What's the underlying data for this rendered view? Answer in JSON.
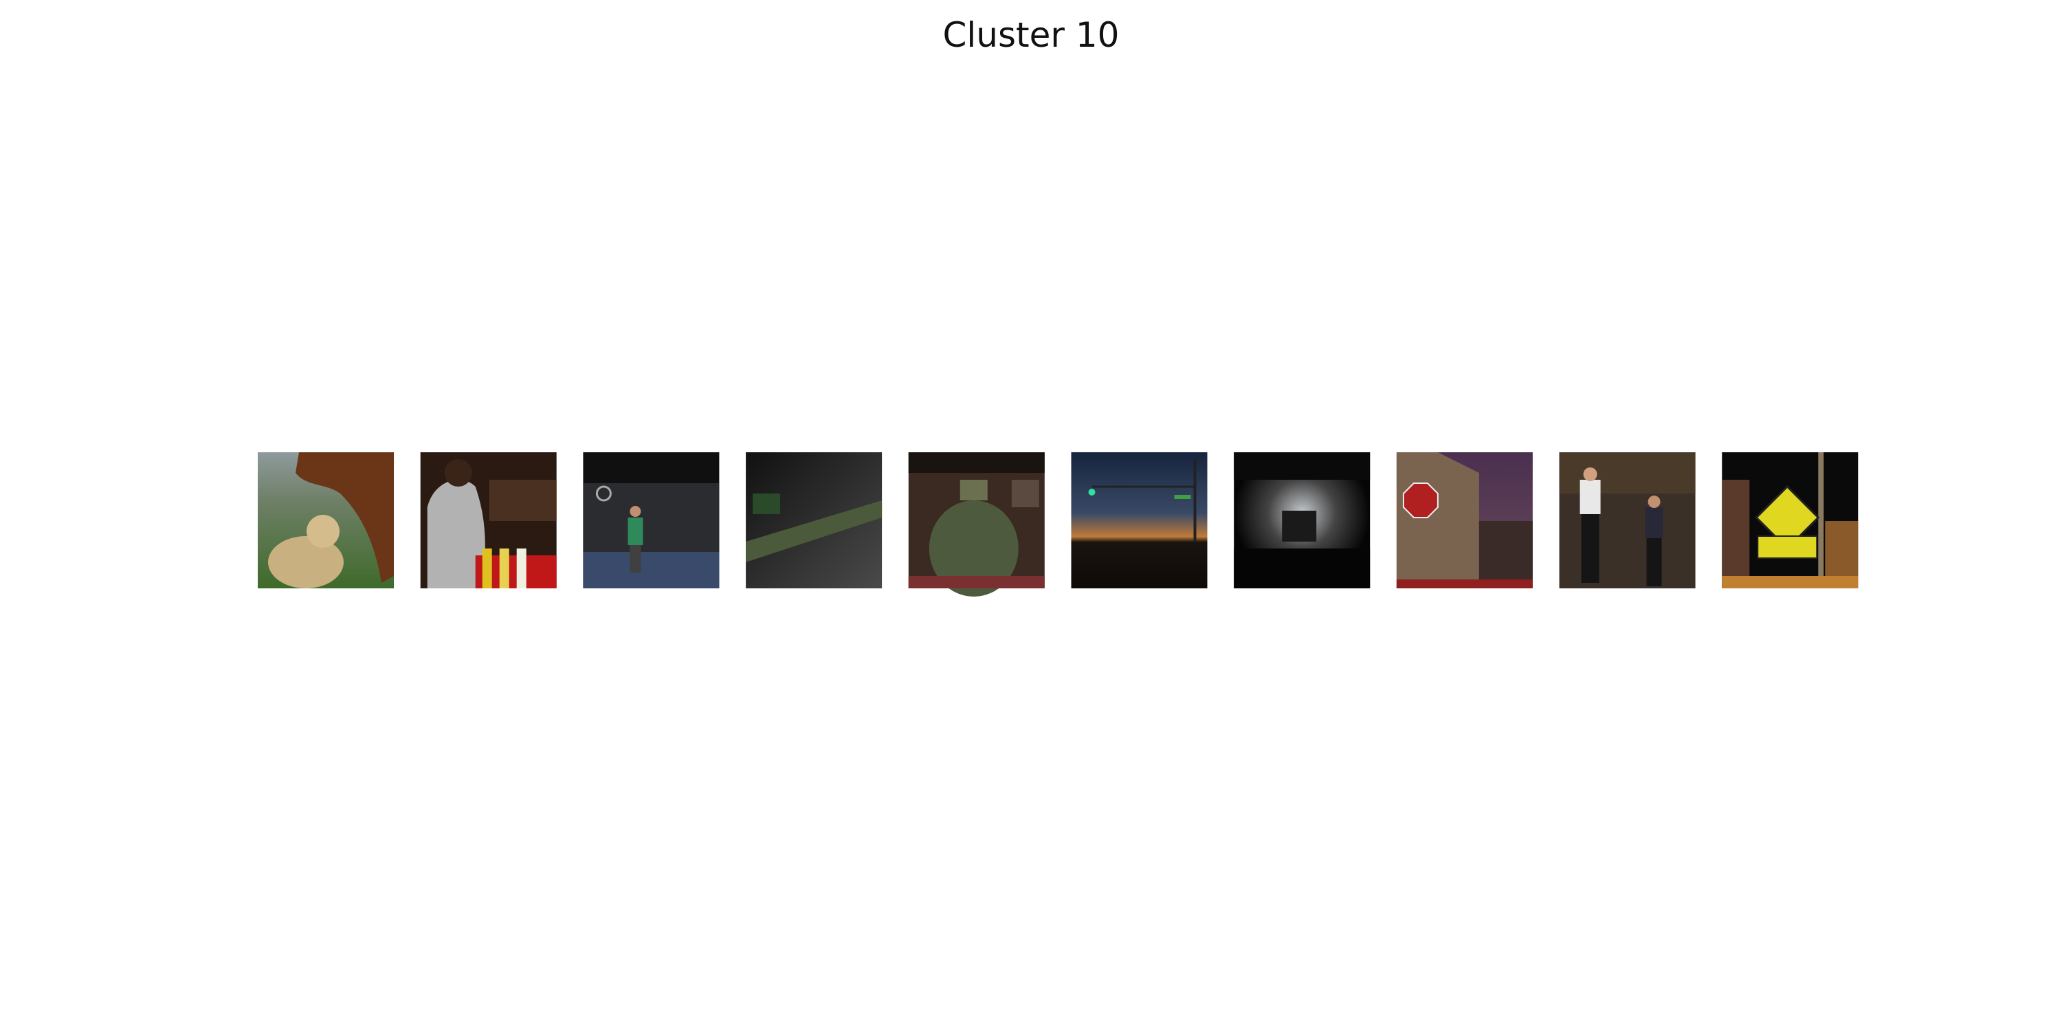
{
  "title": "Cluster 10"
}
